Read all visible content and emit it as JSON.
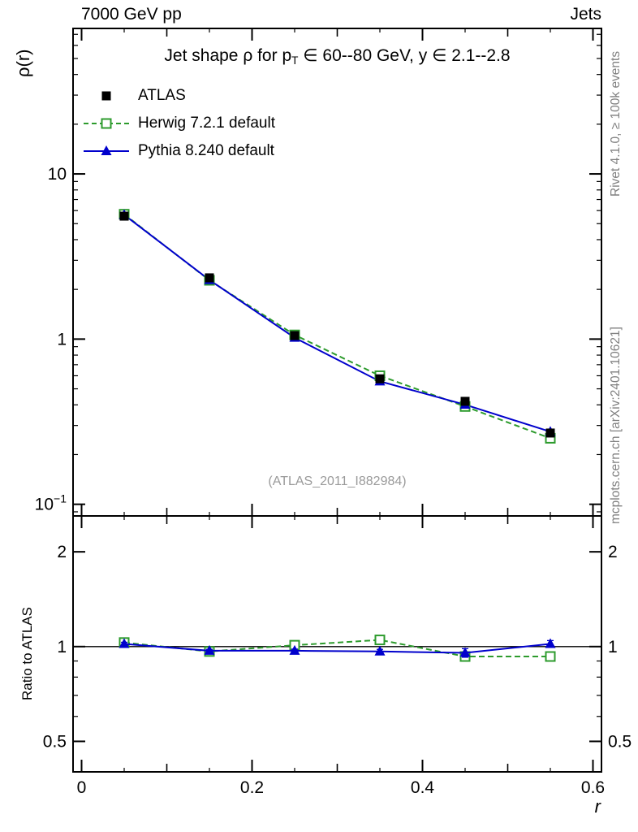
{
  "header": {
    "left": "7000 GeV pp",
    "right": "Jets"
  },
  "title": {
    "prefix": "Jet shape ρ for p",
    "sub": "T",
    "suffix": " ∈ 60--80 GeV, y ∈ 2.1--2.8"
  },
  "side_notes": {
    "top_right": "Rivet 4.1.0, ≥ 100k events",
    "bottom_right": "mcplots.cern.ch [arXiv:2401.10621]"
  },
  "watermark": "(ATLAS_2011_I882984)",
  "chart_data": {
    "type": "line",
    "title": "Jet shape ρ for p_T ∈ 60--80 GeV, y ∈ 2.1--2.8",
    "xlabel": "r",
    "x": [
      0.05,
      0.15,
      0.25,
      0.35,
      0.45,
      0.55
    ],
    "x_range": [
      -0.01,
      0.61
    ],
    "x_major_ticks": {
      "values": [
        0,
        0.2,
        0.4,
        0.6
      ],
      "labels": [
        "0",
        "0.2",
        "0.4",
        "0.6"
      ]
    },
    "x_mid_ticks": [
      0.1,
      0.3,
      0.5
    ],
    "x_minor_step": 0.05,
    "top_panel": {
      "ylabel": "ρ(r)",
      "yscale": "log",
      "y_range": [
        0.085,
        76
      ],
      "major_ticks": [
        {
          "v": 10,
          "label": "10"
        },
        {
          "v": 1,
          "label": "1"
        },
        {
          "v": 0.1,
          "label": "10",
          "sup": "−1"
        }
      ]
    },
    "bottom_panel": {
      "ylabel": "Ratio to ATLAS",
      "yscale": "log",
      "y_range": [
        0.4,
        2.6
      ],
      "ref_line": 1,
      "major_ticks": [
        {
          "v": 2,
          "label": "2"
        },
        {
          "v": 1,
          "label": "1"
        },
        {
          "v": 0.5,
          "label": "0.5"
        }
      ],
      "minor_ticks": [
        0.6,
        0.7,
        0.8,
        0.9
      ]
    },
    "legend_position": "top-left",
    "series": [
      {
        "name": "ATLAS",
        "color": "#000000",
        "marker": "square-filled",
        "line": "none",
        "values": [
          5.55,
          2.35,
          1.05,
          0.575,
          0.42,
          0.27
        ],
        "yerr": [
          0.12,
          0.05,
          0.025,
          0.014,
          0.012,
          0.009
        ]
      },
      {
        "name": "Herwig 7.2.1 default",
        "color": "#2d9b2d",
        "marker": "square-open",
        "line": "dashed",
        "values": [
          5.7,
          2.27,
          1.06,
          0.6,
          0.391,
          0.251
        ],
        "ratio": [
          1.03,
          0.965,
          1.01,
          1.05,
          0.93,
          0.93
        ],
        "ratio_err": [
          0.012,
          0.01,
          0.012,
          0.015,
          0.02,
          0.02
        ]
      },
      {
        "name": "Pythia 8.240 default",
        "color": "#0000cc",
        "marker": "triangle-filled",
        "line": "solid",
        "values": [
          5.65,
          2.28,
          1.02,
          0.555,
          0.401,
          0.275
        ],
        "ratio": [
          1.02,
          0.97,
          0.97,
          0.965,
          0.955,
          1.02
        ],
        "ratio_err": [
          0.012,
          0.01,
          0.012,
          0.015,
          0.03,
          0.025
        ]
      }
    ]
  }
}
